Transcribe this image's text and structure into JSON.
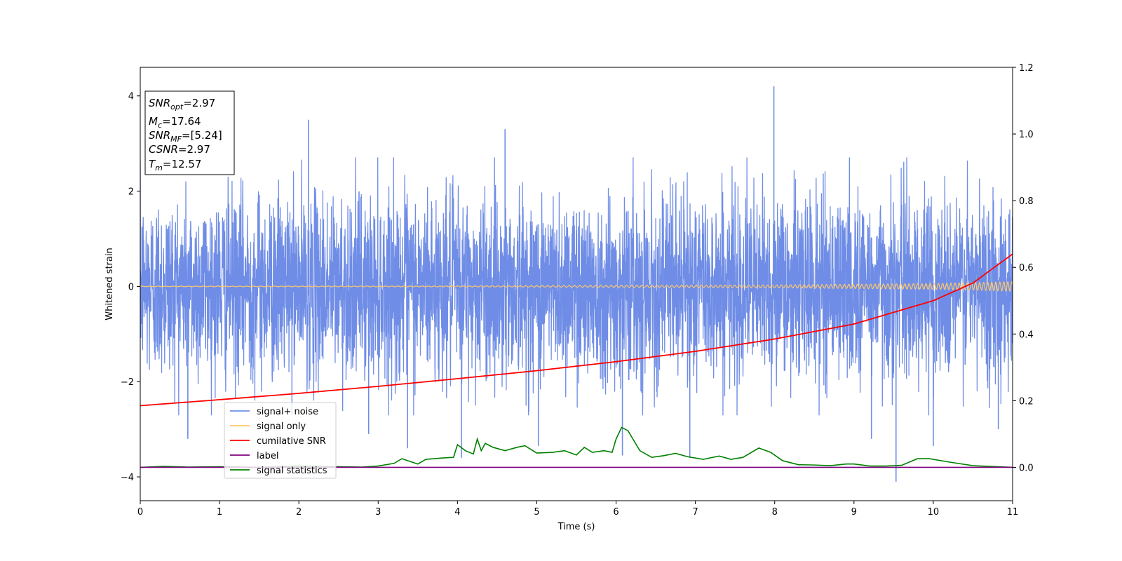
{
  "chart_data": {
    "type": "line",
    "xlabel": "Time (s)",
    "ylabel": "Whitened strain",
    "xlim": [
      0,
      11
    ],
    "ylim_left": [
      -4.5,
      4.6
    ],
    "ylim_right": [
      -0.1,
      1.2
    ],
    "x_ticks": [
      0,
      1,
      2,
      3,
      4,
      5,
      6,
      7,
      8,
      9,
      10,
      11
    ],
    "y_ticks_left": [
      -4,
      -2,
      0,
      2,
      4
    ],
    "y_ticks_right": [
      "0.0",
      "0.2",
      "0.4",
      "0.6",
      "0.8",
      "1.0",
      "1.2"
    ],
    "legend_position": "lower-left",
    "legend": [
      {
        "label": "signal+ noise",
        "color": "#6f8de6"
      },
      {
        "label": "signal only",
        "color": "#ffc86a"
      },
      {
        "label": "cumilative SNR",
        "color": "#ff0000"
      },
      {
        "label": "label",
        "color": "#800080"
      },
      {
        "label": "signal statistics",
        "color": "#008000"
      }
    ],
    "info_box": [
      {
        "main": "SNR",
        "sub": "opt",
        "rest": "=2.97"
      },
      {
        "main": "M",
        "sub": "c",
        "rest": "=17.64"
      },
      {
        "main": "SNR",
        "sub": "MF",
        "rest": "=[5.24]"
      },
      {
        "main": "CSNR",
        "sub": "",
        "rest": "=2.97"
      },
      {
        "main": "T",
        "sub": "m",
        "rest": "=12.57"
      }
    ],
    "series": [
      {
        "name": "signal+ noise",
        "axis": "left",
        "description_values": "whitened noise, roughly within [-2.5, 2.5] with spikes",
        "spikes": [
          {
            "x": 0.6,
            "y": -3.2
          },
          {
            "x": 2.12,
            "y": 3.5
          },
          {
            "x": 2.88,
            "y": -3.1
          },
          {
            "x": 3.37,
            "y": -3.4
          },
          {
            "x": 4.05,
            "y": -3.6
          },
          {
            "x": 4.6,
            "y": 3.3
          },
          {
            "x": 5.02,
            "y": -3.35
          },
          {
            "x": 6.08,
            "y": -3.55
          },
          {
            "x": 6.93,
            "y": -3.6
          },
          {
            "x": 7.99,
            "y": 4.2
          },
          {
            "x": 9.22,
            "y": -3.2
          },
          {
            "x": 9.53,
            "y": -4.1
          },
          {
            "x": 10.0,
            "y": -3.35
          },
          {
            "x": 10.82,
            "y": -3.0
          }
        ]
      },
      {
        "name": "signal only",
        "axis": "left",
        "envelope": [
          [
            0,
            0.005
          ],
          [
            4,
            0.01
          ],
          [
            8,
            0.03
          ],
          [
            10,
            0.06
          ],
          [
            11,
            0.1
          ]
        ]
      },
      {
        "name": "cumilative SNR",
        "axis": "right",
        "x": [
          0,
          1,
          2,
          3,
          4,
          5,
          6,
          7,
          8,
          9,
          10,
          10.5,
          11
        ],
        "y": [
          0.185,
          0.203,
          0.222,
          0.243,
          0.266,
          0.29,
          0.317,
          0.348,
          0.385,
          0.43,
          0.5,
          0.553,
          0.64
        ]
      },
      {
        "name": "label",
        "axis": "right",
        "x": [
          0,
          11
        ],
        "y": [
          0.0,
          0.0
        ]
      },
      {
        "name": "signal statistics",
        "axis": "right",
        "x": [
          0,
          0.3,
          0.6,
          1.0,
          1.5,
          2.0,
          2.5,
          2.8,
          3.0,
          3.2,
          3.3,
          3.5,
          3.6,
          3.8,
          3.95,
          4.0,
          4.1,
          4.2,
          4.25,
          4.3,
          4.35,
          4.45,
          4.6,
          4.75,
          4.85,
          5.0,
          5.2,
          5.35,
          5.5,
          5.6,
          5.7,
          5.85,
          5.95,
          6.0,
          6.07,
          6.15,
          6.3,
          6.45,
          6.6,
          6.75,
          6.9,
          7.1,
          7.3,
          7.45,
          7.6,
          7.8,
          7.95,
          8.1,
          8.3,
          8.5,
          8.7,
          8.9,
          9.0,
          9.2,
          9.4,
          9.6,
          9.8,
          9.95,
          10.2,
          10.5,
          11.0
        ],
        "y": [
          0.0,
          0.003,
          0.001,
          0.002,
          0.0,
          0.004,
          0.002,
          0.001,
          0.004,
          0.012,
          0.026,
          0.01,
          0.024,
          0.028,
          0.03,
          0.068,
          0.05,
          0.04,
          0.085,
          0.05,
          0.072,
          0.06,
          0.05,
          0.06,
          0.065,
          0.043,
          0.045,
          0.05,
          0.037,
          0.06,
          0.045,
          0.05,
          0.045,
          0.085,
          0.12,
          0.11,
          0.05,
          0.03,
          0.035,
          0.042,
          0.032,
          0.024,
          0.034,
          0.024,
          0.03,
          0.058,
          0.045,
          0.02,
          0.008,
          0.007,
          0.005,
          0.01,
          0.01,
          0.004,
          0.004,
          0.006,
          0.026,
          0.026,
          0.016,
          0.005,
          0.0
        ]
      }
    ]
  }
}
